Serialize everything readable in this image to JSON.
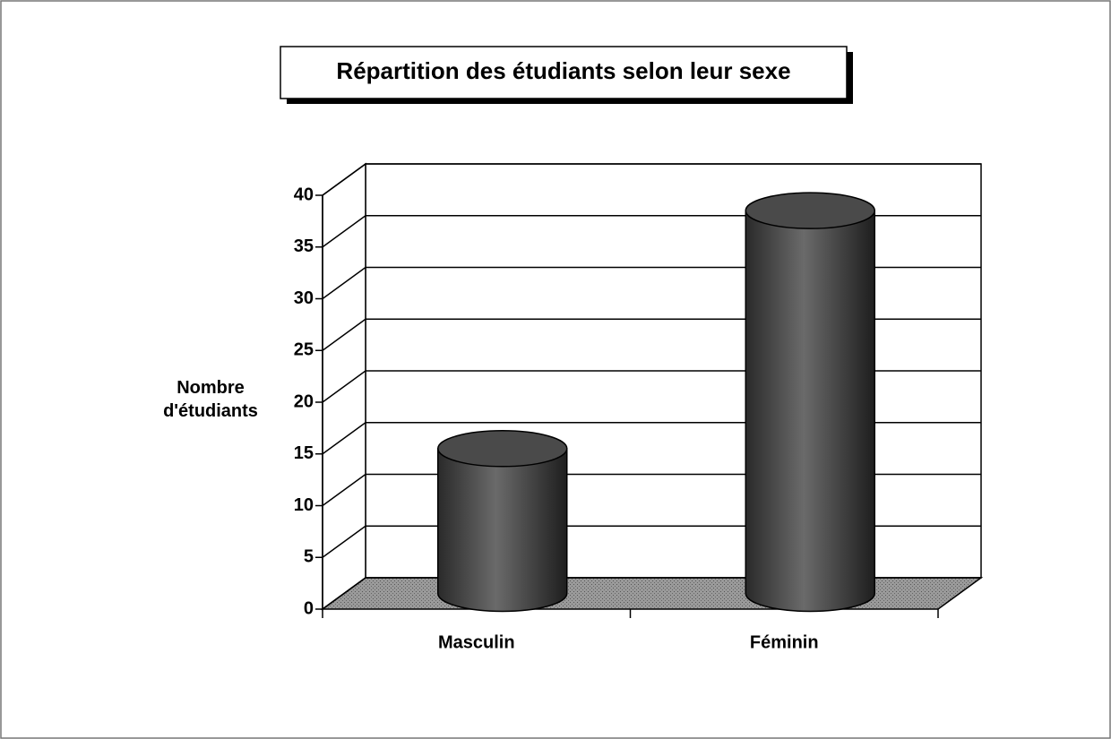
{
  "chart_data": {
    "type": "bar",
    "title": "Répartition des étudiants selon leur sexe",
    "y_label": "Nombre d'étudiants",
    "categories": [
      "Masculin",
      "Féminin"
    ],
    "values": [
      14,
      37
    ],
    "color": "#4a4a4a",
    "ylim": [
      0,
      40
    ],
    "yticks": [
      0,
      5,
      10,
      15,
      20,
      25,
      30,
      35,
      40
    ],
    "grid": true
  }
}
